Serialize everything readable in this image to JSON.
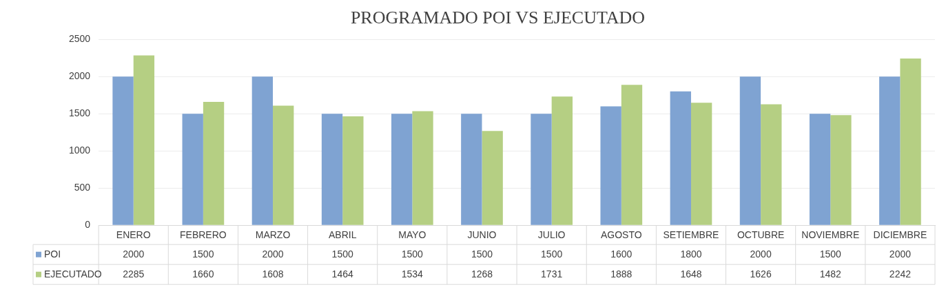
{
  "chart_data": {
    "type": "bar",
    "title": "PROGRAMADO POI VS EJECUTADO",
    "categories": [
      "ENERO",
      "FEBRERO",
      "MARZO",
      "ABRIL",
      "MAYO",
      "JUNIO",
      "JULIO",
      "AGOSTO",
      "SETIEMBRE",
      "OCTUBRE",
      "NOVIEMBRE",
      "DICIEMBRE"
    ],
    "series": [
      {
        "name": "POI",
        "color": "#7fa3d2",
        "values": [
          2000,
          1500,
          2000,
          1500,
          1500,
          1500,
          1500,
          1600,
          1800,
          2000,
          1500,
          2000
        ]
      },
      {
        "name": "EJECUTADO",
        "color": "#b5cf83",
        "values": [
          2285,
          1660,
          1608,
          1464,
          1534,
          1268,
          1731,
          1888,
          1648,
          1626,
          1482,
          2242
        ]
      }
    ],
    "ylim": [
      0,
      2500
    ],
    "yticks": [
      0,
      500,
      1000,
      1500,
      2000,
      2500
    ],
    "grid": "y",
    "legend": "bottom",
    "data_labels": true
  }
}
